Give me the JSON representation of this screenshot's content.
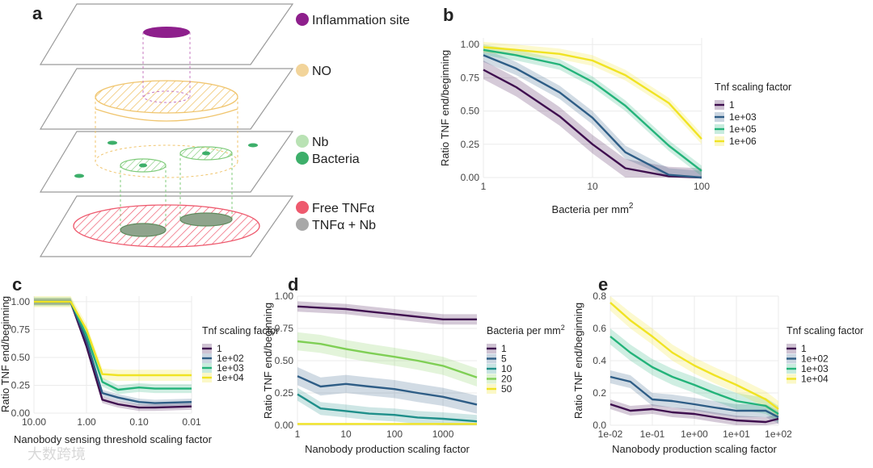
{
  "figure": {
    "panel_a": {
      "label": "a",
      "legend": [
        {
          "name": "Inflammation site",
          "color": "#8e1f8c"
        },
        {
          "name": "NO",
          "color": "#f2d49a"
        },
        {
          "name": "Nb",
          "color": "#b9e2b4"
        },
        {
          "name": "Bacteria",
          "color": "#3daf6a"
        },
        {
          "name": "Free TNFα",
          "color": "#ee5a6e"
        },
        {
          "name": "TNFα + Nb",
          "color": "#a8a8a8"
        }
      ]
    },
    "watermark": "大数跨境"
  },
  "chart_data": [
    {
      "id": "b",
      "label": "b",
      "type": "line",
      "xscale": "log",
      "xlim": [
        1,
        100
      ],
      "ylim": [
        0,
        1.05
      ],
      "xticks": [
        1,
        10,
        100
      ],
      "xticklabels": [
        "1",
        "10",
        "100"
      ],
      "yticks": [
        0,
        0.25,
        0.5,
        0.75,
        1.0
      ],
      "yticklabels": [
        "0.00",
        "0.25",
        "0.50",
        "0.75",
        "1.00"
      ],
      "xlabel": "Bacteria per mm",
      "xlabel_sup": "2",
      "ylabel": "Ratio TNF end/beginning",
      "legend_title": "Tnf scaling factor",
      "series": [
        {
          "name": "1",
          "color": "#3f0f4f",
          "x": [
            1,
            2,
            5,
            10,
            20,
            50,
            100
          ],
          "y": [
            0.81,
            0.68,
            0.46,
            0.25,
            0.07,
            0.01,
            0.0
          ],
          "band": 0.07
        },
        {
          "name": "1e+03",
          "color": "#2e5d86",
          "x": [
            1,
            2,
            5,
            10,
            20,
            50,
            100
          ],
          "y": [
            0.92,
            0.82,
            0.64,
            0.45,
            0.19,
            0.02,
            0.0
          ],
          "band": 0.05
        },
        {
          "name": "1e+05",
          "color": "#24b37a",
          "x": [
            1,
            2,
            5,
            10,
            20,
            50,
            100
          ],
          "y": [
            0.96,
            0.92,
            0.85,
            0.72,
            0.54,
            0.24,
            0.05
          ],
          "band": 0.04
        },
        {
          "name": "1e+06",
          "color": "#f0e323",
          "x": [
            1,
            2,
            5,
            10,
            20,
            50,
            100
          ],
          "y": [
            0.98,
            0.96,
            0.93,
            0.88,
            0.77,
            0.56,
            0.29
          ],
          "band": 0.04
        }
      ]
    },
    {
      "id": "c",
      "label": "c",
      "type": "line",
      "xscale": "log_reversed",
      "xlim": [
        10,
        0.01
      ],
      "ylim": [
        0,
        1.05
      ],
      "xticks": [
        10,
        1,
        0.1,
        0.01
      ],
      "xticklabels": [
        "10.00",
        "1.00",
        "0.10",
        "0.01"
      ],
      "yticks": [
        0,
        0.25,
        0.5,
        0.75,
        1.0
      ],
      "yticklabels": [
        "0.00",
        "0.25",
        "0.50",
        "0.75",
        "1.00"
      ],
      "xlabel": "Nanobody sensing threshold scaling factor",
      "ylabel": "Ratio TNF end/beginning",
      "legend_title": "Tnf scaling factor",
      "series": [
        {
          "name": "1",
          "color": "#3f0f4f",
          "x": [
            10,
            5,
            2,
            1,
            0.5,
            0.25,
            0.1,
            0.05,
            0.01
          ],
          "y": [
            1.0,
            1.0,
            1.0,
            0.6,
            0.12,
            0.08,
            0.05,
            0.05,
            0.06
          ],
          "band": 0.03
        },
        {
          "name": "1e+02",
          "color": "#2e5d86",
          "x": [
            10,
            5,
            2,
            1,
            0.5,
            0.25,
            0.1,
            0.05,
            0.01
          ],
          "y": [
            1.0,
            1.0,
            1.0,
            0.65,
            0.18,
            0.14,
            0.1,
            0.09,
            0.1
          ],
          "band": 0.03
        },
        {
          "name": "1e+03",
          "color": "#24b37a",
          "x": [
            10,
            5,
            2,
            1,
            0.5,
            0.25,
            0.1,
            0.05,
            0.01
          ],
          "y": [
            1.0,
            1.0,
            1.0,
            0.7,
            0.28,
            0.21,
            0.23,
            0.22,
            0.22
          ],
          "band": 0.04
        },
        {
          "name": "1e+04",
          "color": "#f0e323",
          "x": [
            10,
            5,
            2,
            1,
            0.5,
            0.25,
            0.1,
            0.05,
            0.01
          ],
          "y": [
            1.0,
            1.0,
            1.0,
            0.75,
            0.35,
            0.34,
            0.34,
            0.34,
            0.34
          ],
          "band": 0.05
        }
      ]
    },
    {
      "id": "d",
      "label": "d",
      "type": "line",
      "xscale": "log",
      "xlim": [
        1,
        5000
      ],
      "ylim": [
        0,
        1.0
      ],
      "xticks": [
        1,
        10,
        100,
        1000
      ],
      "xticklabels": [
        "1",
        "10",
        "100",
        "1000"
      ],
      "yticks": [
        0,
        0.25,
        0.5,
        0.75,
        1.0
      ],
      "yticklabels": [
        "0.00",
        "0.25",
        "0.50",
        "0.75",
        "1.00"
      ],
      "xlabel": "Nanobody production scaling factor",
      "ylabel": "Ratio TNF end/beginning",
      "legend_title": "Bacteria per mm",
      "legend_title_sup": "2",
      "series": [
        {
          "name": "1",
          "color": "#3f0f4f",
          "x": [
            1,
            3,
            10,
            30,
            100,
            300,
            1000,
            5000
          ],
          "y": [
            0.92,
            0.91,
            0.9,
            0.88,
            0.86,
            0.84,
            0.82,
            0.82
          ],
          "band": 0.04
        },
        {
          "name": "5",
          "color": "#2e5d86",
          "x": [
            1,
            3,
            10,
            30,
            100,
            300,
            1000,
            5000
          ],
          "y": [
            0.38,
            0.3,
            0.32,
            0.3,
            0.28,
            0.25,
            0.22,
            0.16
          ],
          "band": 0.07
        },
        {
          "name": "10",
          "color": "#1f8f8a",
          "x": [
            1,
            3,
            10,
            30,
            100,
            300,
            1000,
            5000
          ],
          "y": [
            0.24,
            0.13,
            0.11,
            0.09,
            0.08,
            0.06,
            0.05,
            0.03
          ],
          "band": 0.05
        },
        {
          "name": "20",
          "color": "#7fcf55",
          "x": [
            1,
            3,
            10,
            30,
            100,
            300,
            1000,
            5000
          ],
          "y": [
            0.65,
            0.63,
            0.59,
            0.56,
            0.53,
            0.5,
            0.46,
            0.37
          ],
          "band": 0.07
        },
        {
          "name": "50",
          "color": "#f0e323",
          "x": [
            1,
            3,
            10,
            30,
            100,
            300,
            1000,
            5000
          ],
          "y": [
            0.01,
            0.01,
            0.01,
            0.01,
            0.01,
            0.01,
            0.01,
            0.01
          ],
          "band": 0.005
        }
      ]
    },
    {
      "id": "e",
      "label": "e",
      "type": "line",
      "xscale": "log",
      "xlim": [
        0.01,
        100
      ],
      "ylim": [
        0,
        0.8
      ],
      "xticks": [
        0.01,
        0.1,
        1,
        10,
        100
      ],
      "xticklabels": [
        "1e-02",
        "1e-01",
        "1e+00",
        "1e+01",
        "1e+02"
      ],
      "yticks": [
        0,
        0.2,
        0.4,
        0.6,
        0.8
      ],
      "yticklabels": [
        "0.0",
        "0.2",
        "0.4",
        "0.6",
        "0.8"
      ],
      "xlabel": "Nanobody production scaling factor",
      "ylabel": "Ratio TNF end/beginning",
      "legend_title": "Tnf scaling factor",
      "series": [
        {
          "name": "1",
          "color": "#3f0f4f",
          "x": [
            0.01,
            0.03,
            0.1,
            0.3,
            1,
            3,
            10,
            50,
            100
          ],
          "y": [
            0.13,
            0.09,
            0.1,
            0.08,
            0.07,
            0.05,
            0.03,
            0.02,
            0.04
          ],
          "band": 0.03
        },
        {
          "name": "1e+02",
          "color": "#2e5d86",
          "x": [
            0.01,
            0.03,
            0.1,
            0.3,
            1,
            3,
            10,
            50,
            100
          ],
          "y": [
            0.3,
            0.27,
            0.16,
            0.15,
            0.13,
            0.11,
            0.09,
            0.09,
            0.05
          ],
          "band": 0.04
        },
        {
          "name": "1e+03",
          "color": "#24b37a",
          "x": [
            0.01,
            0.03,
            0.1,
            0.3,
            1,
            3,
            10,
            50,
            100
          ],
          "y": [
            0.55,
            0.45,
            0.36,
            0.3,
            0.25,
            0.2,
            0.15,
            0.12,
            0.07
          ],
          "band": 0.05
        },
        {
          "name": "1e+04",
          "color": "#f0e323",
          "x": [
            0.01,
            0.03,
            0.1,
            0.3,
            1,
            3,
            10,
            50,
            100
          ],
          "y": [
            0.76,
            0.65,
            0.55,
            0.45,
            0.37,
            0.31,
            0.25,
            0.16,
            0.1
          ],
          "band": 0.05
        }
      ]
    }
  ]
}
